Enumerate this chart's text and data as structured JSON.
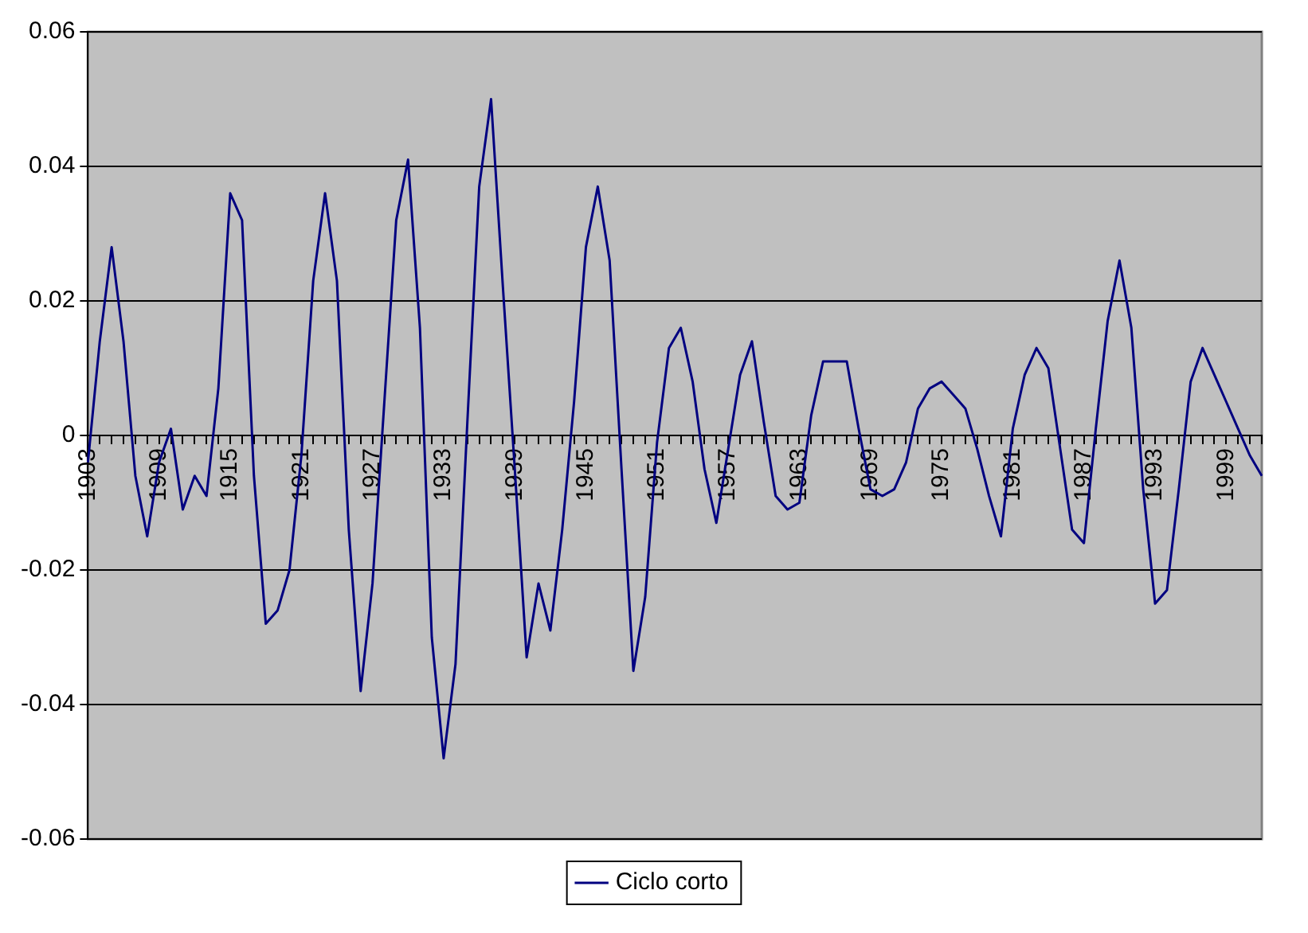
{
  "chart_data": {
    "type": "line",
    "categories": [
      "1903",
      null,
      null,
      null,
      null,
      null,
      "1909",
      null,
      null,
      null,
      null,
      null,
      "1915",
      null,
      null,
      null,
      null,
      null,
      "1921",
      null,
      null,
      null,
      null,
      null,
      "1927",
      null,
      null,
      null,
      null,
      null,
      "1933",
      null,
      null,
      null,
      null,
      null,
      "1939",
      null,
      null,
      null,
      null,
      null,
      "1945",
      null,
      null,
      null,
      null,
      null,
      "1951",
      null,
      null,
      null,
      null,
      null,
      "1957",
      null,
      null,
      null,
      null,
      null,
      "1963",
      null,
      null,
      null,
      null,
      null,
      "1969",
      null,
      null,
      null,
      null,
      null,
      "1975",
      null,
      null,
      null,
      null,
      null,
      "1981",
      null,
      null,
      null,
      null,
      null,
      "1987",
      null,
      null,
      null,
      null,
      null,
      "1993",
      null,
      null,
      null,
      null,
      null,
      "1999",
      null,
      null,
      null
    ],
    "series": [
      {
        "name": "Ciclo corto",
        "color": "#000080",
        "values": [
          -0.004,
          0.014,
          0.028,
          0.014,
          -0.006,
          -0.015,
          -0.004,
          0.001,
          -0.011,
          -0.006,
          -0.009,
          0.007,
          0.036,
          0.032,
          -0.006,
          -0.028,
          -0.026,
          -0.02,
          -0.003,
          0.023,
          0.036,
          0.023,
          -0.014,
          -0.038,
          -0.022,
          0.005,
          0.032,
          0.041,
          0.016,
          -0.03,
          -0.048,
          -0.034,
          0.002,
          0.037,
          0.05,
          0.022,
          -0.005,
          -0.033,
          -0.022,
          -0.029,
          -0.014,
          0.005,
          0.028,
          0.037,
          0.026,
          -0.005,
          -0.035,
          -0.024,
          -0.001,
          0.013,
          0.016,
          0.008,
          -0.005,
          -0.013,
          -0.002,
          0.009,
          0.014,
          0.002,
          -0.009,
          -0.011,
          -0.01,
          0.003,
          0.011,
          0.011,
          0.011,
          0.001,
          -0.008,
          -0.009,
          -0.008,
          -0.004,
          0.004,
          0.007,
          0.008,
          0.006,
          0.004,
          -0.002,
          -0.009,
          -0.015,
          0.001,
          0.009,
          0.013,
          0.01,
          -0.002,
          -0.014,
          -0.016,
          0.001,
          0.017,
          0.026,
          0.016,
          -0.008,
          -0.025,
          -0.023,
          -0.008,
          0.008,
          0.013,
          0.009,
          0.005,
          0.001,
          -0.003,
          -0.006
        ]
      }
    ],
    "ylim": [
      -0.06,
      0.06
    ],
    "yticks": [
      -0.06,
      -0.04,
      -0.02,
      0,
      0.02,
      0.04,
      0.06
    ],
    "grid": "y",
    "legend": "bottom"
  }
}
